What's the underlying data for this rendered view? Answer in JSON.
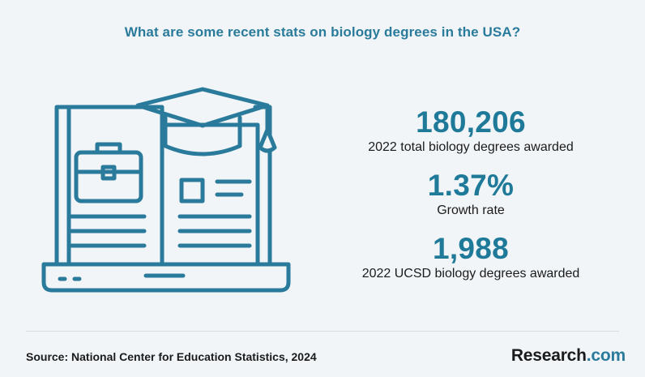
{
  "title": "What are some recent stats on biology degrees in the USA?",
  "stats": [
    {
      "value": "180,206",
      "label": "2022 total biology degrees awarded"
    },
    {
      "value": "1.37%",
      "label": "Growth rate"
    },
    {
      "value": "1,988",
      "label": "2022 UCSD biology degrees awarded"
    }
  ],
  "footer": {
    "source": "Source:  National Center for Education Statistics, 2024",
    "brand_name": "Research",
    "brand_suffix": ".com"
  },
  "colors": {
    "background": "#f1f5f8",
    "accent": "#2a7b9b",
    "text": "#1b1b1b"
  },
  "icons": [
    "laptop-icon",
    "graduation-cap-icon",
    "briefcase-icon",
    "document-icon"
  ]
}
